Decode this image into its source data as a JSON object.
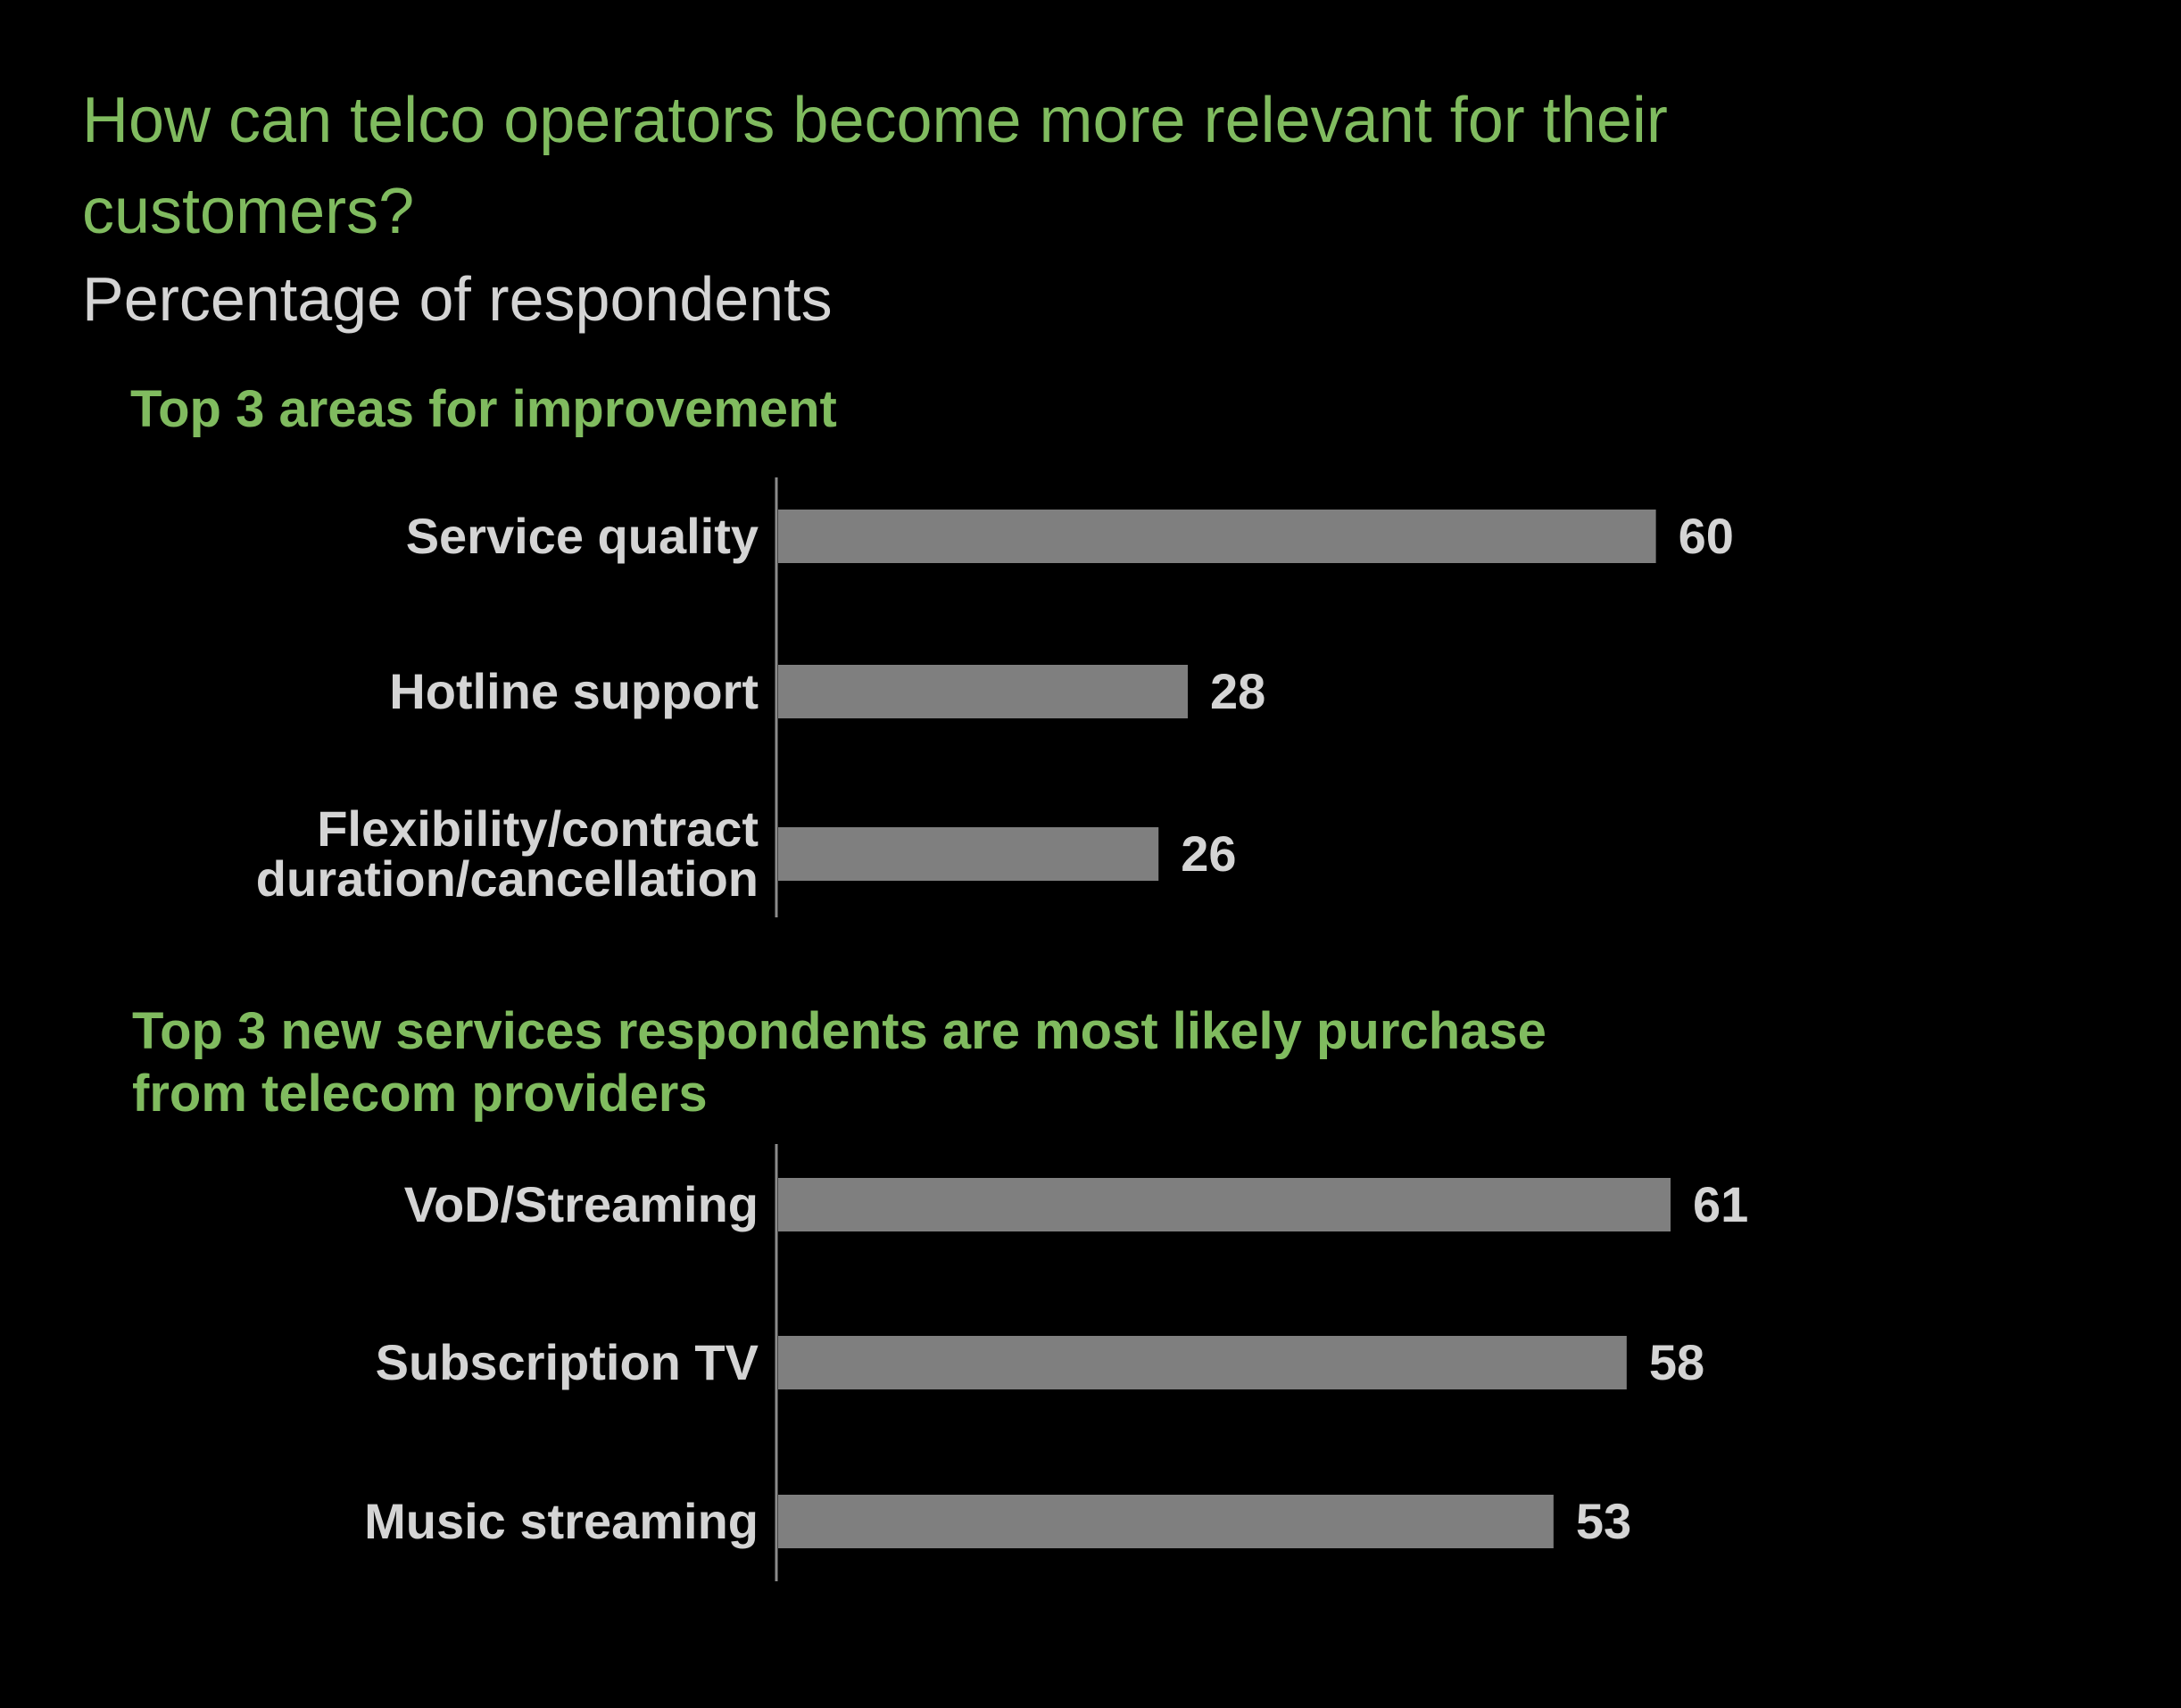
{
  "colors": {
    "background": "#000000",
    "accent": "#80bb5f",
    "text": "#d4d4d4",
    "bar": "#7f7f7f",
    "axis": "#8c8c8c"
  },
  "header": {
    "title": "How can telco operators become more relevant for their customers?",
    "subtitle": "Percentage of respondents"
  },
  "chart_data": [
    {
      "type": "bar",
      "orientation": "horizontal",
      "title": "Top 3 areas for improvement",
      "categories": [
        "Service quality",
        "Hotline support",
        "Flexibility/contract duration/cancellation"
      ],
      "category_lines": [
        [
          "Service quality"
        ],
        [
          "Hotline support"
        ],
        [
          "Flexibility/contract",
          "duration/cancellation"
        ]
      ],
      "values": [
        60,
        28,
        26
      ],
      "value_labels": [
        "60",
        "28",
        "26"
      ],
      "xlim": [
        0,
        61
      ],
      "grid": false,
      "legend": "none"
    },
    {
      "type": "bar",
      "orientation": "horizontal",
      "title": "Top 3 new services respondents are most likely purchase from telecom providers",
      "title_lines": [
        "Top 3 new services respondents are most likely purchase",
        "from telecom providers"
      ],
      "categories": [
        "VoD/Streaming",
        "Subscription TV",
        "Music streaming"
      ],
      "category_lines": [
        [
          "VoD/Streaming"
        ],
        [
          "Subscription TV"
        ],
        [
          "Music streaming"
        ]
      ],
      "values": [
        61,
        58,
        53
      ],
      "value_labels": [
        "61",
        "58",
        "53"
      ],
      "xlim": [
        0,
        61
      ],
      "grid": false,
      "legend": "none"
    }
  ]
}
